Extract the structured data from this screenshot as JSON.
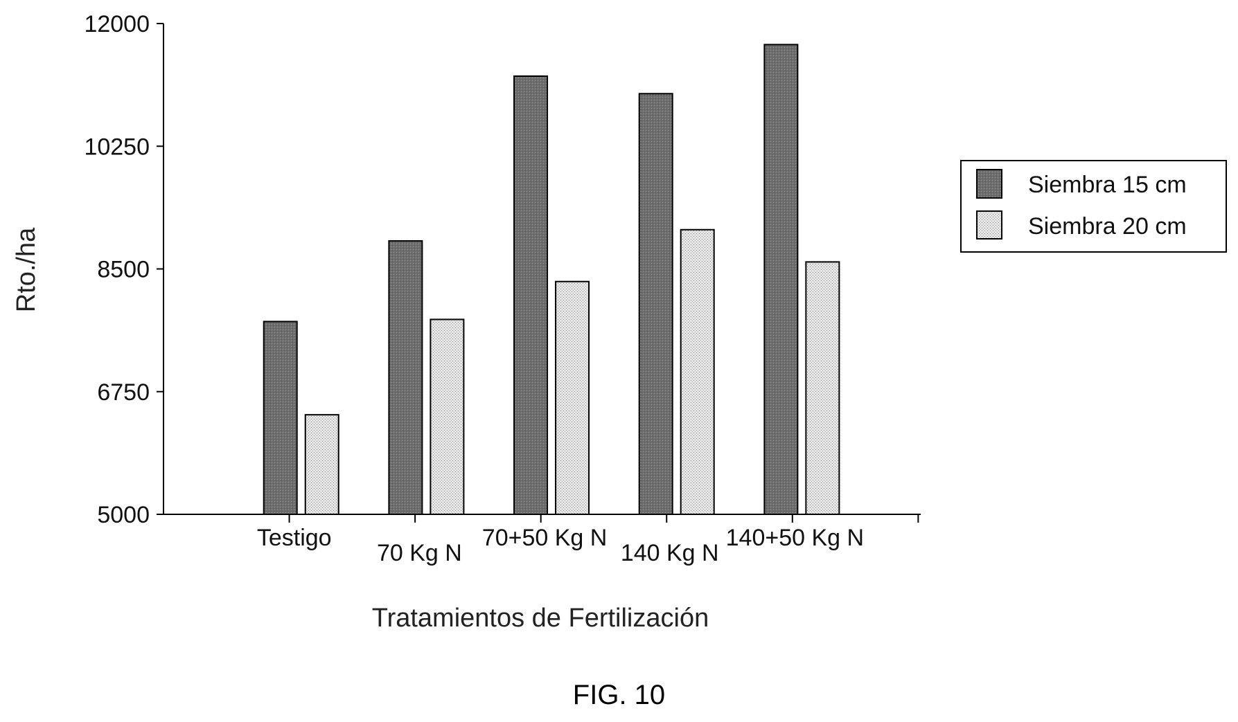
{
  "caption": "FIG. 10",
  "chart_data": {
    "type": "bar",
    "title": "",
    "xlabel": "Tratamientos de Fertilización",
    "ylabel": "Rto./ha",
    "ylim": [
      5000,
      12000
    ],
    "yticks": [
      "5000",
      "6750",
      "8500",
      "10250",
      "12000"
    ],
    "categories": [
      "Testigo",
      "70 Kg N",
      "70+50 Kg N",
      "140 Kg N",
      "140+50 Kg N"
    ],
    "series": [
      {
        "name": "Siembra 15 cm",
        "values": [
          7750,
          8900,
          11250,
          11000,
          11700
        ],
        "color": "#6e6e6e"
      },
      {
        "name": "Siembra 20 cm",
        "values": [
          6420,
          7780,
          8320,
          9060,
          8600
        ],
        "color": "#cfcfcf"
      }
    ],
    "legend_position": "right",
    "grid": false
  }
}
